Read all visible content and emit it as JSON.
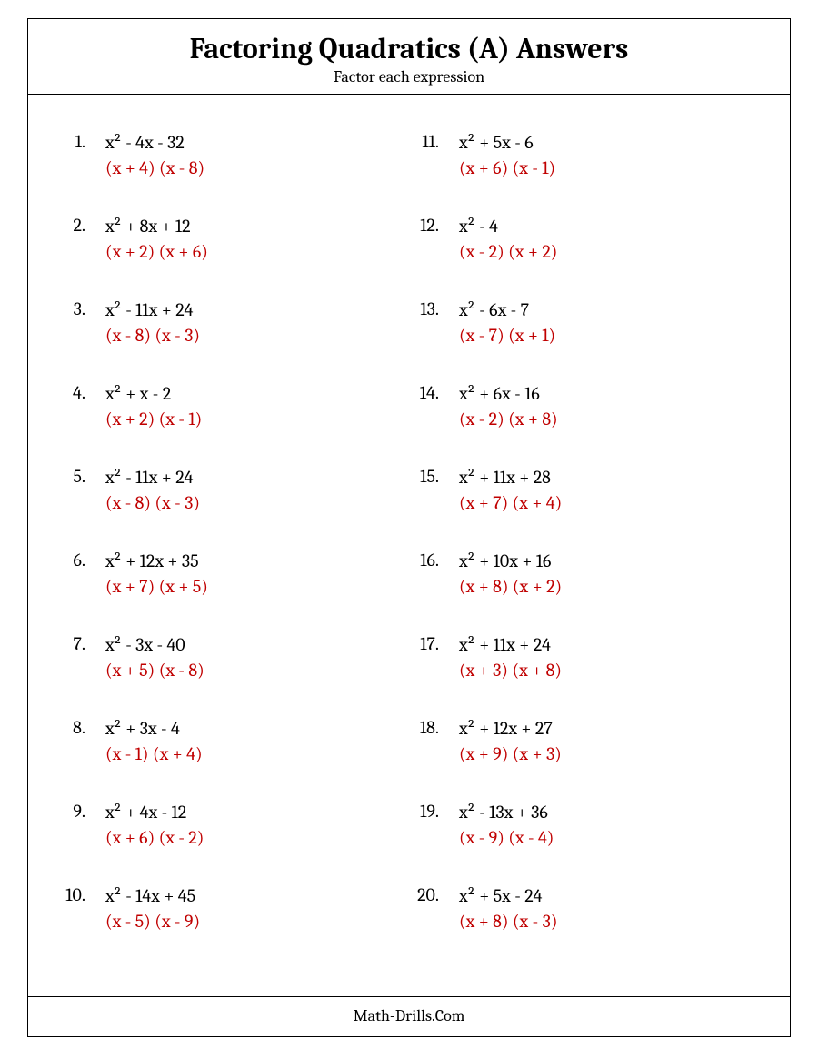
{
  "title": "Factoring Quadratics (A) Answers",
  "subtitle": "Factor each expression",
  "footer": "Math-Drills.Com",
  "colors": {
    "answer": "#c00000",
    "text": "#000000",
    "background": "#ffffff",
    "border": "#000000"
  },
  "typography": {
    "title_fontsize": 32,
    "subtitle_fontsize": 18,
    "body_fontsize": 20,
    "footer_fontsize": 18,
    "font_family": "Cambria, Georgia, serif"
  },
  "left": [
    {
      "n": "1.",
      "expr": "x² - 4x - 32",
      "ans": "(x + 4) (x - 8)"
    },
    {
      "n": "2.",
      "expr": "x² + 8x + 12",
      "ans": "(x + 2) (x + 6)"
    },
    {
      "n": "3.",
      "expr": "x² - 11x + 24",
      "ans": "(x - 8) (x - 3)"
    },
    {
      "n": "4.",
      "expr": "x² + x - 2",
      "ans": "(x + 2) (x - 1)"
    },
    {
      "n": "5.",
      "expr": "x² - 11x + 24",
      "ans": "(x - 8) (x - 3)"
    },
    {
      "n": "6.",
      "expr": "x² + 12x + 35",
      "ans": "(x + 7) (x + 5)"
    },
    {
      "n": "7.",
      "expr": "x² - 3x - 40",
      "ans": "(x + 5) (x - 8)"
    },
    {
      "n": "8.",
      "expr": "x² + 3x - 4",
      "ans": "(x - 1) (x + 4)"
    },
    {
      "n": "9.",
      "expr": "x² + 4x - 12",
      "ans": "(x + 6) (x - 2)"
    },
    {
      "n": "10.",
      "expr": "x² - 14x + 45",
      "ans": "(x - 5) (x - 9)"
    }
  ],
  "right": [
    {
      "n": "11.",
      "expr": "x² + 5x - 6",
      "ans": "(x + 6) (x - 1)"
    },
    {
      "n": "12.",
      "expr": "x² - 4",
      "ans": "(x - 2) (x + 2)"
    },
    {
      "n": "13.",
      "expr": "x² - 6x - 7",
      "ans": "(x - 7) (x + 1)"
    },
    {
      "n": "14.",
      "expr": "x² + 6x - 16",
      "ans": "(x - 2) (x + 8)"
    },
    {
      "n": "15.",
      "expr": "x² + 11x + 28",
      "ans": "(x + 7) (x + 4)"
    },
    {
      "n": "16.",
      "expr": "x² + 10x + 16",
      "ans": "(x + 8) (x + 2)"
    },
    {
      "n": "17.",
      "expr": "x² + 11x + 24",
      "ans": "(x + 3) (x + 8)"
    },
    {
      "n": "18.",
      "expr": "x² + 12x + 27",
      "ans": "(x + 9) (x + 3)"
    },
    {
      "n": "19.",
      "expr": "x² - 13x + 36",
      "ans": "(x - 9) (x - 4)"
    },
    {
      "n": "20.",
      "expr": "x² + 5x - 24",
      "ans": "(x + 8) (x - 3)"
    }
  ]
}
